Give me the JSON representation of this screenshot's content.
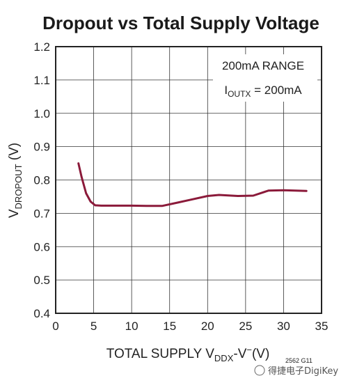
{
  "chart_data": {
    "type": "line",
    "title": "Dropout vs Total Supply Voltage",
    "xlabel": "TOTAL SUPPLY V",
    "xlabel_sub": "DDX",
    "xlabel_tail": "-V",
    "xlabel_sup": "−",
    "xlabel_unit": "(V)",
    "ylabel": "V",
    "ylabel_sub": "DROPOUT",
    "ylabel_unit": " (V)",
    "xlim": [
      0,
      35
    ],
    "ylim": [
      0.4,
      1.2
    ],
    "xticks": [
      "0",
      "5",
      "10",
      "15",
      "20",
      "25",
      "30",
      "35"
    ],
    "yticks": [
      "0.4",
      "0.5",
      "0.6",
      "0.7",
      "0.8",
      "0.9",
      "1.0",
      "1.1",
      "1.2"
    ],
    "grid": true,
    "annotation_line1": "200mA RANGE",
    "annotation_line2_pre": "I",
    "annotation_line2_sub": "OUTX",
    "annotation_line2_post": " = 200mA",
    "series": [
      {
        "color": "#8b1a3a",
        "x": [
          3.0,
          3.4,
          4.0,
          4.6,
          5.2,
          6.0,
          8.0,
          10.0,
          12.0,
          14.0,
          16.0,
          18.0,
          20.0,
          21.5,
          24.0,
          26.0,
          28.0,
          30.0,
          33.0
        ],
        "y": [
          0.85,
          0.81,
          0.76,
          0.735,
          0.724,
          0.723,
          0.723,
          0.723,
          0.722,
          0.722,
          0.732,
          0.742,
          0.752,
          0.755,
          0.752,
          0.753,
          0.768,
          0.769,
          0.767
        ]
      }
    ]
  },
  "figure_code": "2562 G11",
  "watermark": "得捷电子DigiKey"
}
